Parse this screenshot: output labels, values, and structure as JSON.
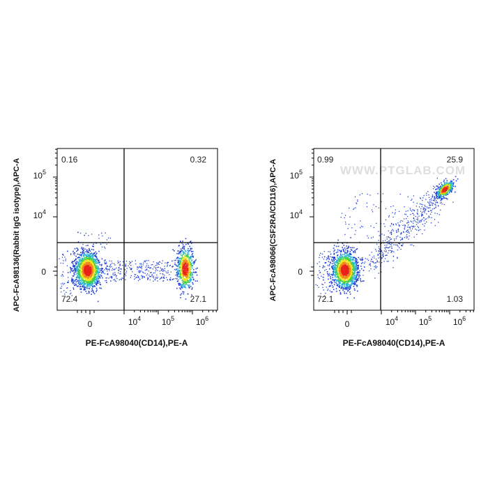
{
  "chart_data": [
    {
      "type": "scatter",
      "subtype": "flow-cytometry-density-dot-plot",
      "xlabel": "PE-FcA98040(CD14),PE-A",
      "ylabel": "APC-FcA98136(Rabbit IgG isotype),APC-A",
      "x_scale": "biexponential",
      "y_scale": "biexponential",
      "x_ticks": [
        {
          "base": "0",
          "exp": ""
        },
        {
          "base": "10",
          "exp": "4"
        },
        {
          "base": "10",
          "exp": "5"
        },
        {
          "base": "10",
          "exp": "6"
        }
      ],
      "y_ticks": [
        {
          "base": "0",
          "exp": ""
        },
        {
          "base": "10",
          "exp": "4"
        },
        {
          "base": "10",
          "exp": "5"
        }
      ],
      "quadrant_gates": {
        "x": 6000,
        "y": 2200
      },
      "quadrants": {
        "top_left": "0.16",
        "top_right": "0.32",
        "bottom_left": "72.4",
        "bottom_right": "27.1"
      },
      "populations": [
        {
          "x_center": 0,
          "y_center": 0,
          "fraction": 0.72
        },
        {
          "x_center": 600000,
          "y_center": 0,
          "fraction": 0.2
        },
        {
          "x_center": 70000,
          "y_center": 0,
          "fraction": 0.08
        }
      ],
      "color_scale": [
        "#1f3fd6",
        "#2db4d9",
        "#43d04a",
        "#f2e31d",
        "#f08a1c",
        "#e8231c"
      ]
    },
    {
      "type": "scatter",
      "subtype": "flow-cytometry-density-dot-plot",
      "xlabel": "PE-FcA98040(CD14),PE-A",
      "ylabel": "APC-FcA98066(CSF2RA/CD116),APC-A",
      "x_scale": "biexponential",
      "y_scale": "biexponential",
      "x_ticks": [
        {
          "base": "0",
          "exp": ""
        },
        {
          "base": "10",
          "exp": "4"
        },
        {
          "base": "10",
          "exp": "5"
        },
        {
          "base": "10",
          "exp": "6"
        }
      ],
      "y_ticks": [
        {
          "base": "0",
          "exp": ""
        },
        {
          "base": "10",
          "exp": "4"
        },
        {
          "base": "10",
          "exp": "5"
        }
      ],
      "quadrant_gates": {
        "x": 6000,
        "y": 2200
      },
      "quadrants": {
        "top_left": "0.99",
        "top_right": "25.9",
        "bottom_left": "72.1",
        "bottom_right": "1.03"
      },
      "populations": [
        {
          "x_center": 0,
          "y_center": 0,
          "fraction": 0.72
        },
        {
          "x_center": 700000,
          "y_center": 50000,
          "fraction": 0.26
        },
        {
          "x_center": 100000,
          "y_center": 8000,
          "fraction": 0.02
        }
      ],
      "color_scale": [
        "#1f3fd6",
        "#2db4d9",
        "#43d04a",
        "#f2e31d",
        "#f08a1c",
        "#e8231c"
      ]
    }
  ],
  "watermark": "WWW.PTGLAB.COM"
}
